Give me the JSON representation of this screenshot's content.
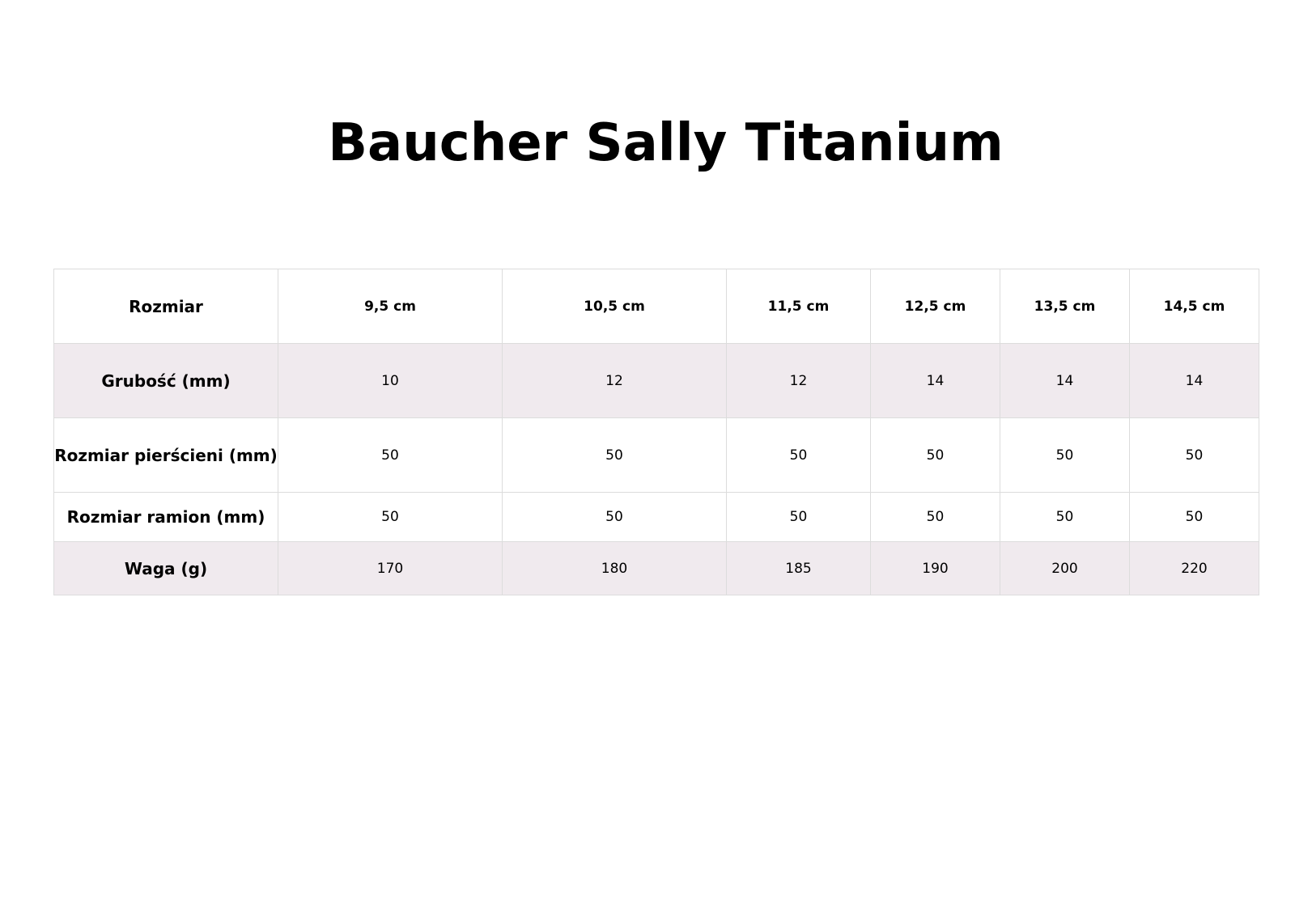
{
  "title": "Baucher Sally Titanium",
  "table": {
    "header": {
      "label": "Rozmiar",
      "columns": [
        "9,5 cm",
        "10,5 cm",
        "11,5 cm",
        "12,5 cm",
        "13,5 cm",
        "14,5 cm"
      ]
    },
    "rows": [
      {
        "label": "Grubość (mm)",
        "values": [
          "10",
          "12",
          "12",
          "14",
          "14",
          "14"
        ],
        "shaded": true
      },
      {
        "label": "Rozmiar pierścieni (mm)",
        "values": [
          "50",
          "50",
          "50",
          "50",
          "50",
          "50"
        ],
        "shaded": false
      },
      {
        "label": "Rozmiar ramion (mm)",
        "values": [
          "50",
          "50",
          "50",
          "50",
          "50",
          "50"
        ],
        "shaded": false
      },
      {
        "label": "Waga (g)",
        "values": [
          "170",
          "180",
          "185",
          "190",
          "200",
          "220"
        ],
        "shaded": true
      }
    ]
  },
  "colors": {
    "shaded_row": "#f0eaee",
    "border": "#dcdcdc"
  }
}
